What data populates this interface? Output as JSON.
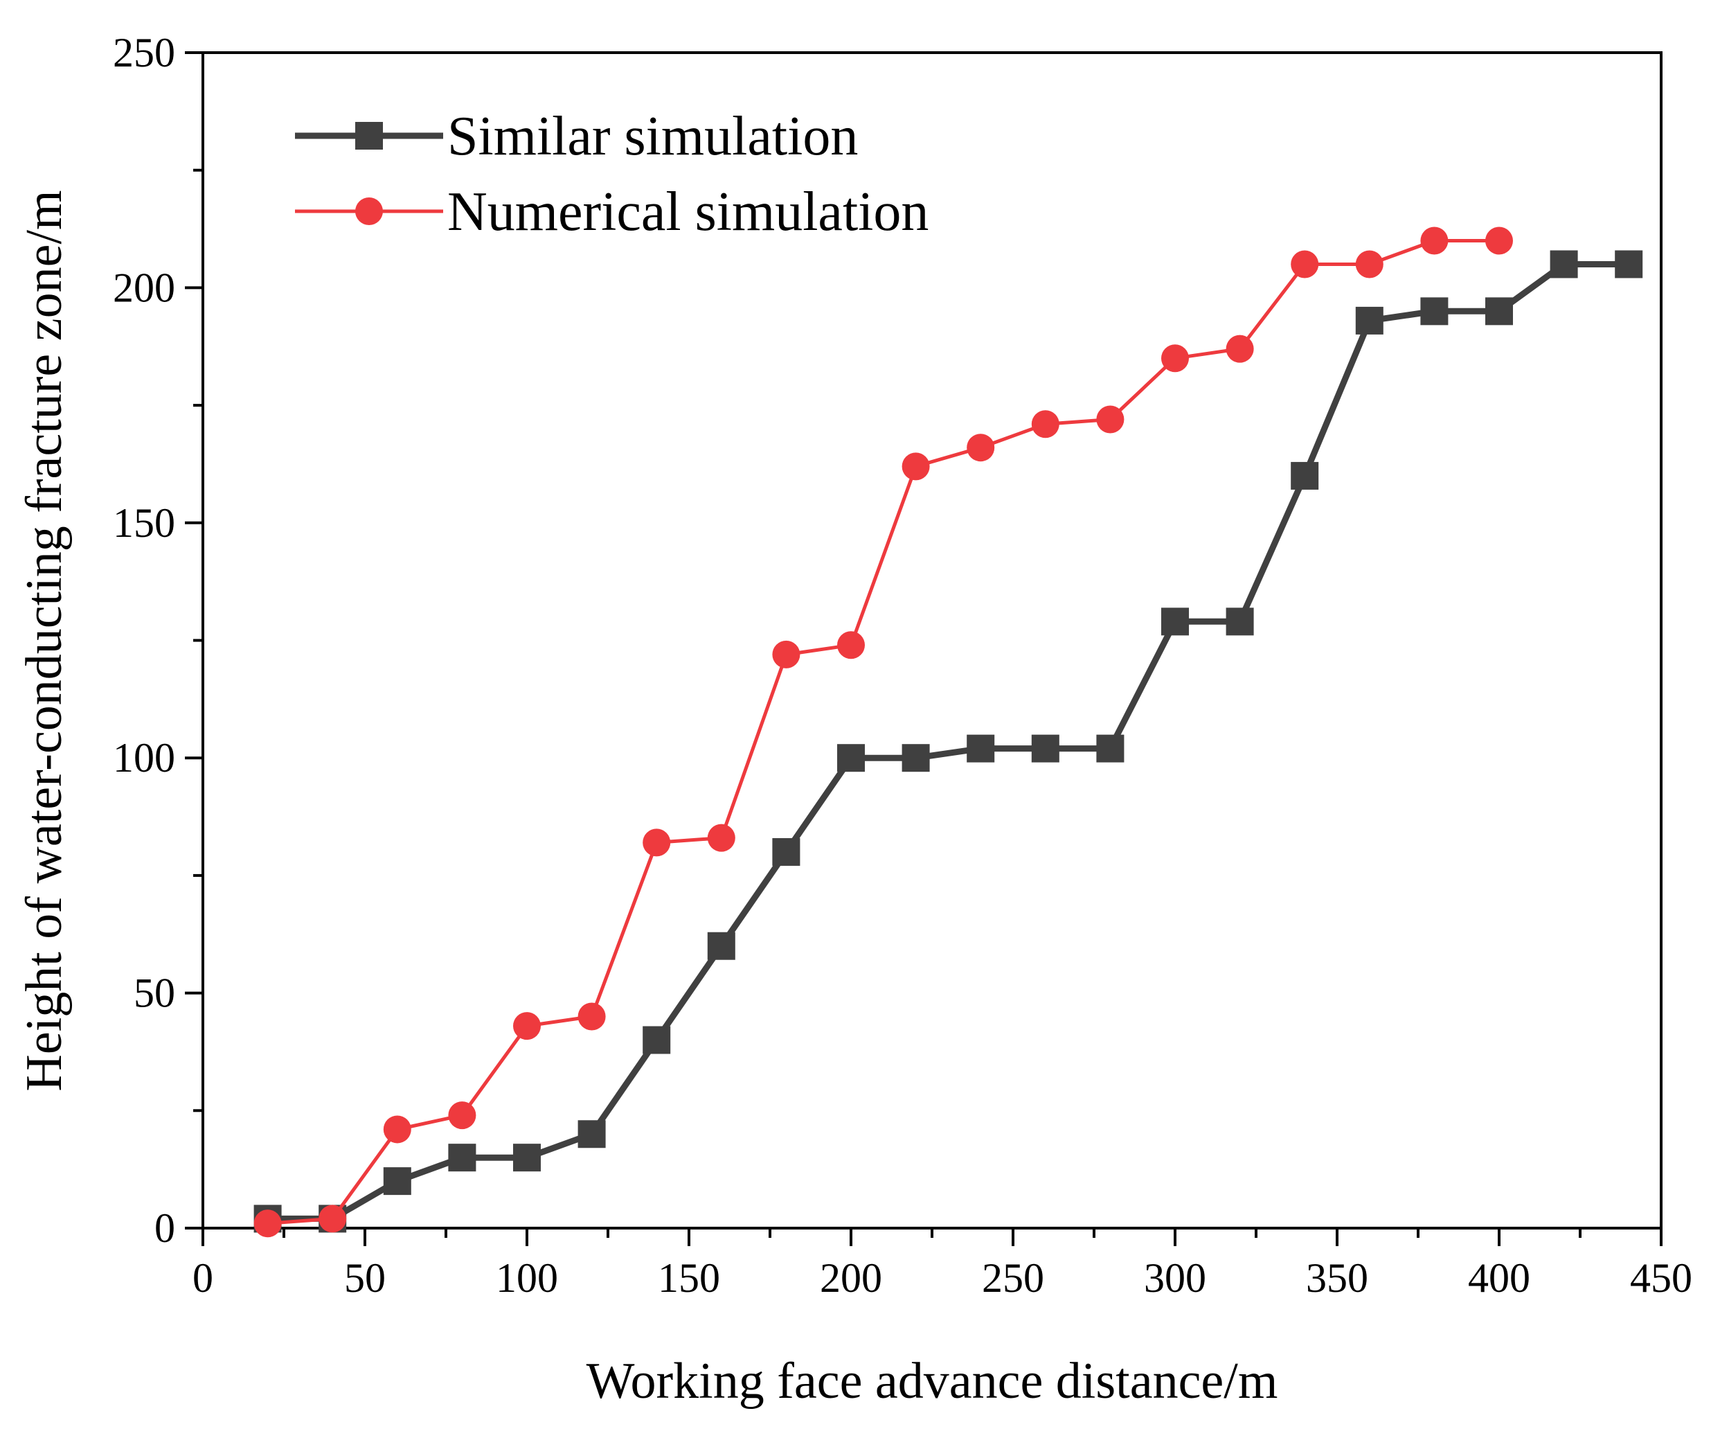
{
  "chart_data": {
    "type": "line",
    "title": "",
    "xlabel": "Working face advance distance/m",
    "ylabel": "Height of water-conducting fracture zone/m",
    "xlim": [
      0,
      450
    ],
    "ylim": [
      0,
      250
    ],
    "x_major_ticks": [
      0,
      50,
      100,
      150,
      200,
      250,
      300,
      350,
      400,
      450
    ],
    "x_minor_ticks": [
      25,
      75,
      125,
      175,
      225,
      275,
      325,
      375,
      425
    ],
    "y_major_ticks": [
      0,
      50,
      100,
      150,
      200,
      250
    ],
    "y_minor_ticks": [
      25,
      75,
      125,
      175,
      225
    ],
    "x_tick_labels": [
      "0",
      "50",
      "100",
      "150",
      "200",
      "250",
      "300",
      "350",
      "400",
      "450"
    ],
    "y_tick_labels": [
      "0",
      "50",
      "100",
      "150",
      "200",
      "250"
    ],
    "grid": false,
    "legend_position": "top-left",
    "series": [
      {
        "name": "Similar simulation",
        "color": "#404040",
        "marker": "square",
        "x": [
          20,
          40,
          60,
          80,
          100,
          120,
          140,
          160,
          180,
          200,
          220,
          240,
          260,
          280,
          300,
          320,
          340,
          360,
          380,
          400,
          420,
          440
        ],
        "y": [
          2,
          2,
          10,
          15,
          15,
          20,
          40,
          60,
          80,
          100,
          100,
          102,
          102,
          102,
          129,
          129,
          160,
          193,
          195,
          195,
          205,
          205
        ]
      },
      {
        "name": "Numerical simulation",
        "color": "#ee3a3e",
        "marker": "circle",
        "x": [
          20,
          40,
          60,
          80,
          100,
          120,
          140,
          160,
          180,
          200,
          220,
          240,
          260,
          280,
          300,
          320,
          340,
          360,
          380,
          400
        ],
        "y": [
          1,
          2,
          21,
          24,
          43,
          45,
          82,
          83,
          122,
          124,
          162,
          166,
          171,
          172,
          185,
          187,
          205,
          205,
          210,
          210
        ]
      }
    ]
  }
}
